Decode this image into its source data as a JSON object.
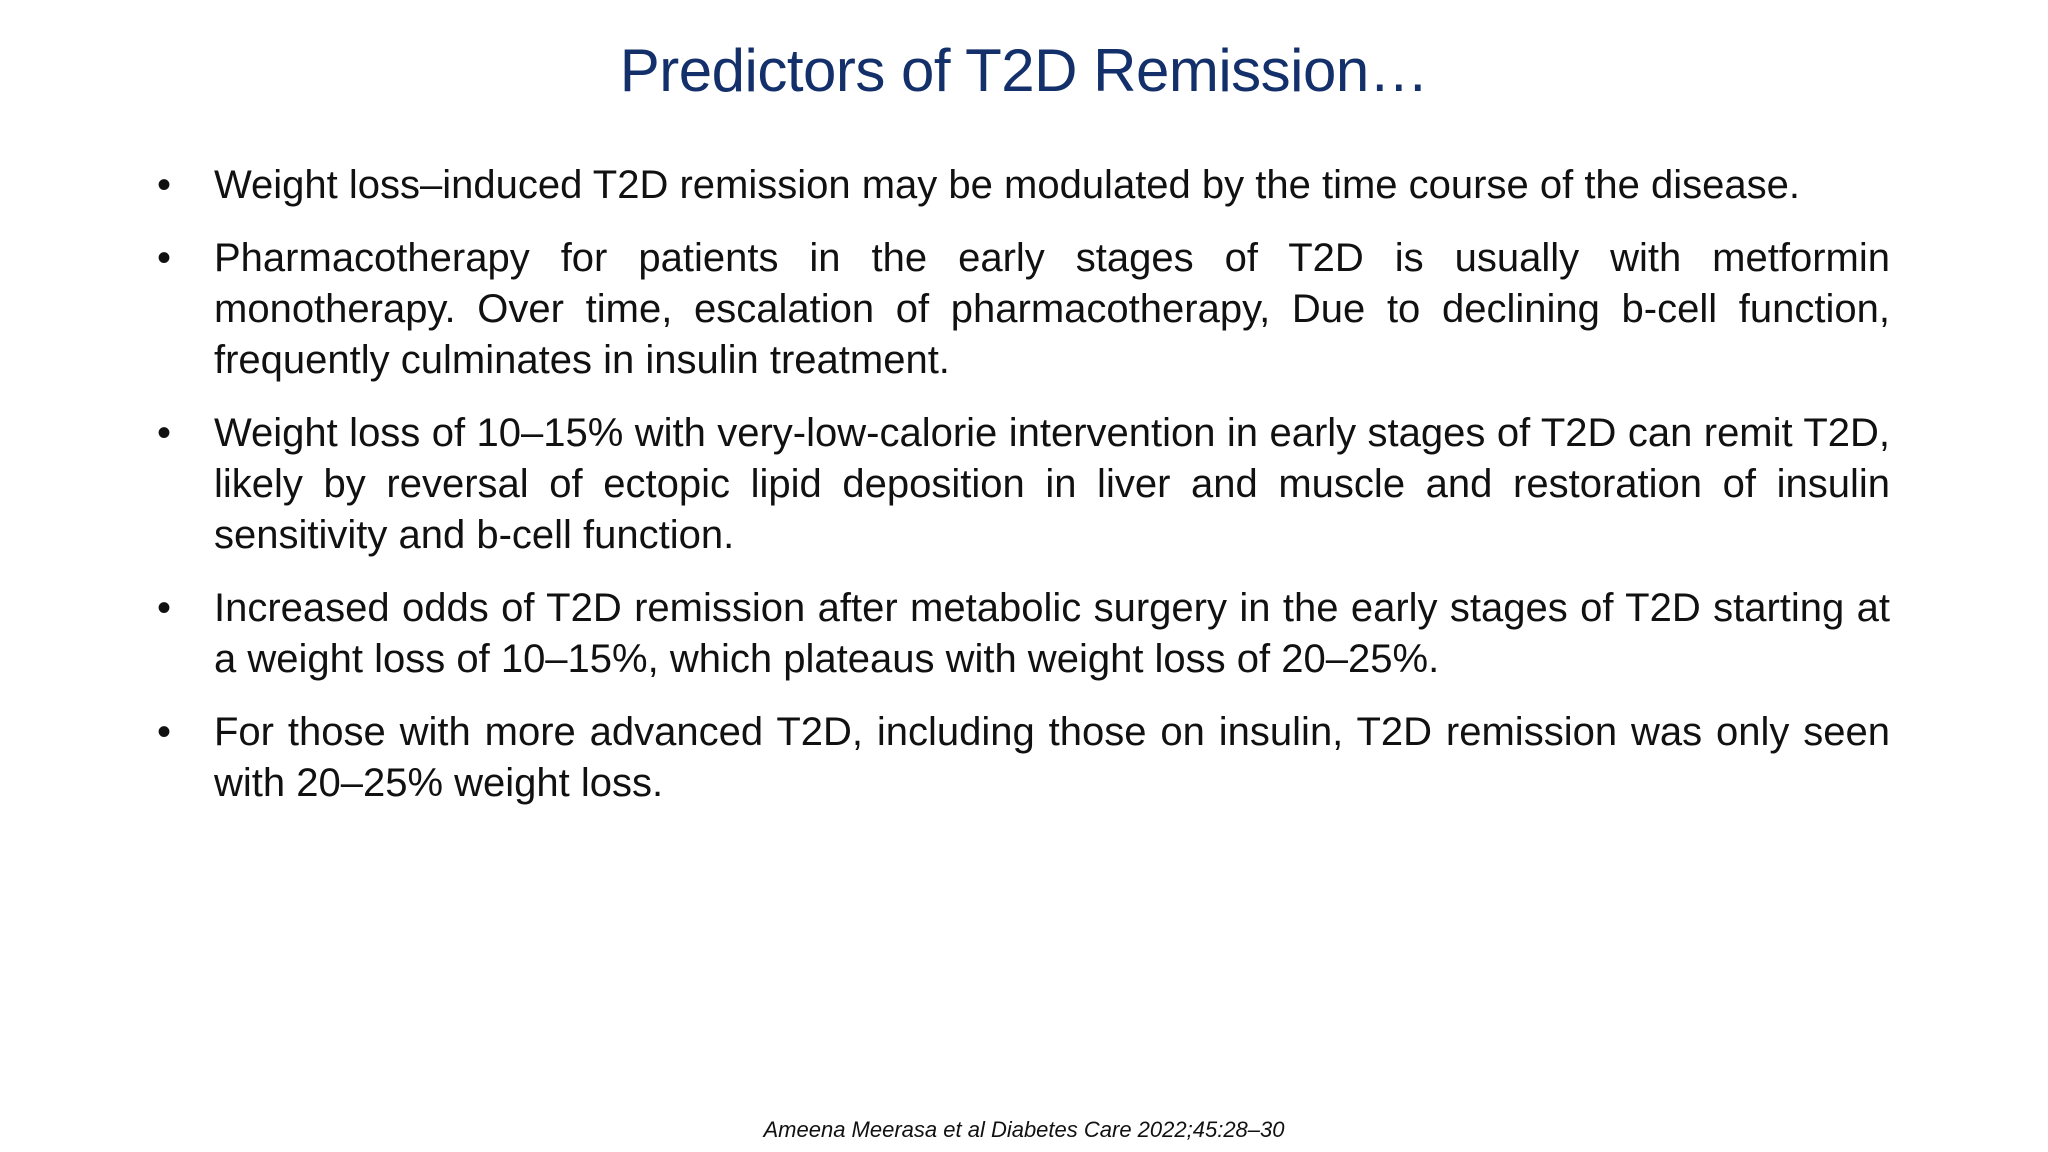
{
  "title": "Predictors of T2D Remission…",
  "bullets": [
    "Weight loss–induced T2D remission may be modulated by the time course of the disease.",
    "Pharmacotherapy for patients in the early stages of T2D is usually with metformin monotherapy. Over time, escalation of pharmacotherapy, Due to declining b-cell function, frequently culminates in insulin treatment.",
    "Weight loss of 10–15% with very-low-calorie intervention in early stages of T2D can remit T2D, likely by reversal of ectopic lipid deposition in liver and muscle and restoration of insulin sensitivity and b-cell function.",
    "Increased odds of T2D remission after metabolic surgery in the early stages of T2D starting at a weight loss of 10–15%, which plateaus with weight loss of 20–25%.",
    "For those with more advanced T2D, including those on insulin, T2D remission was only seen with 20–25% weight loss."
  ],
  "citation": "Ameena Meerasa et al Diabetes Care 2022;45:28–30"
}
